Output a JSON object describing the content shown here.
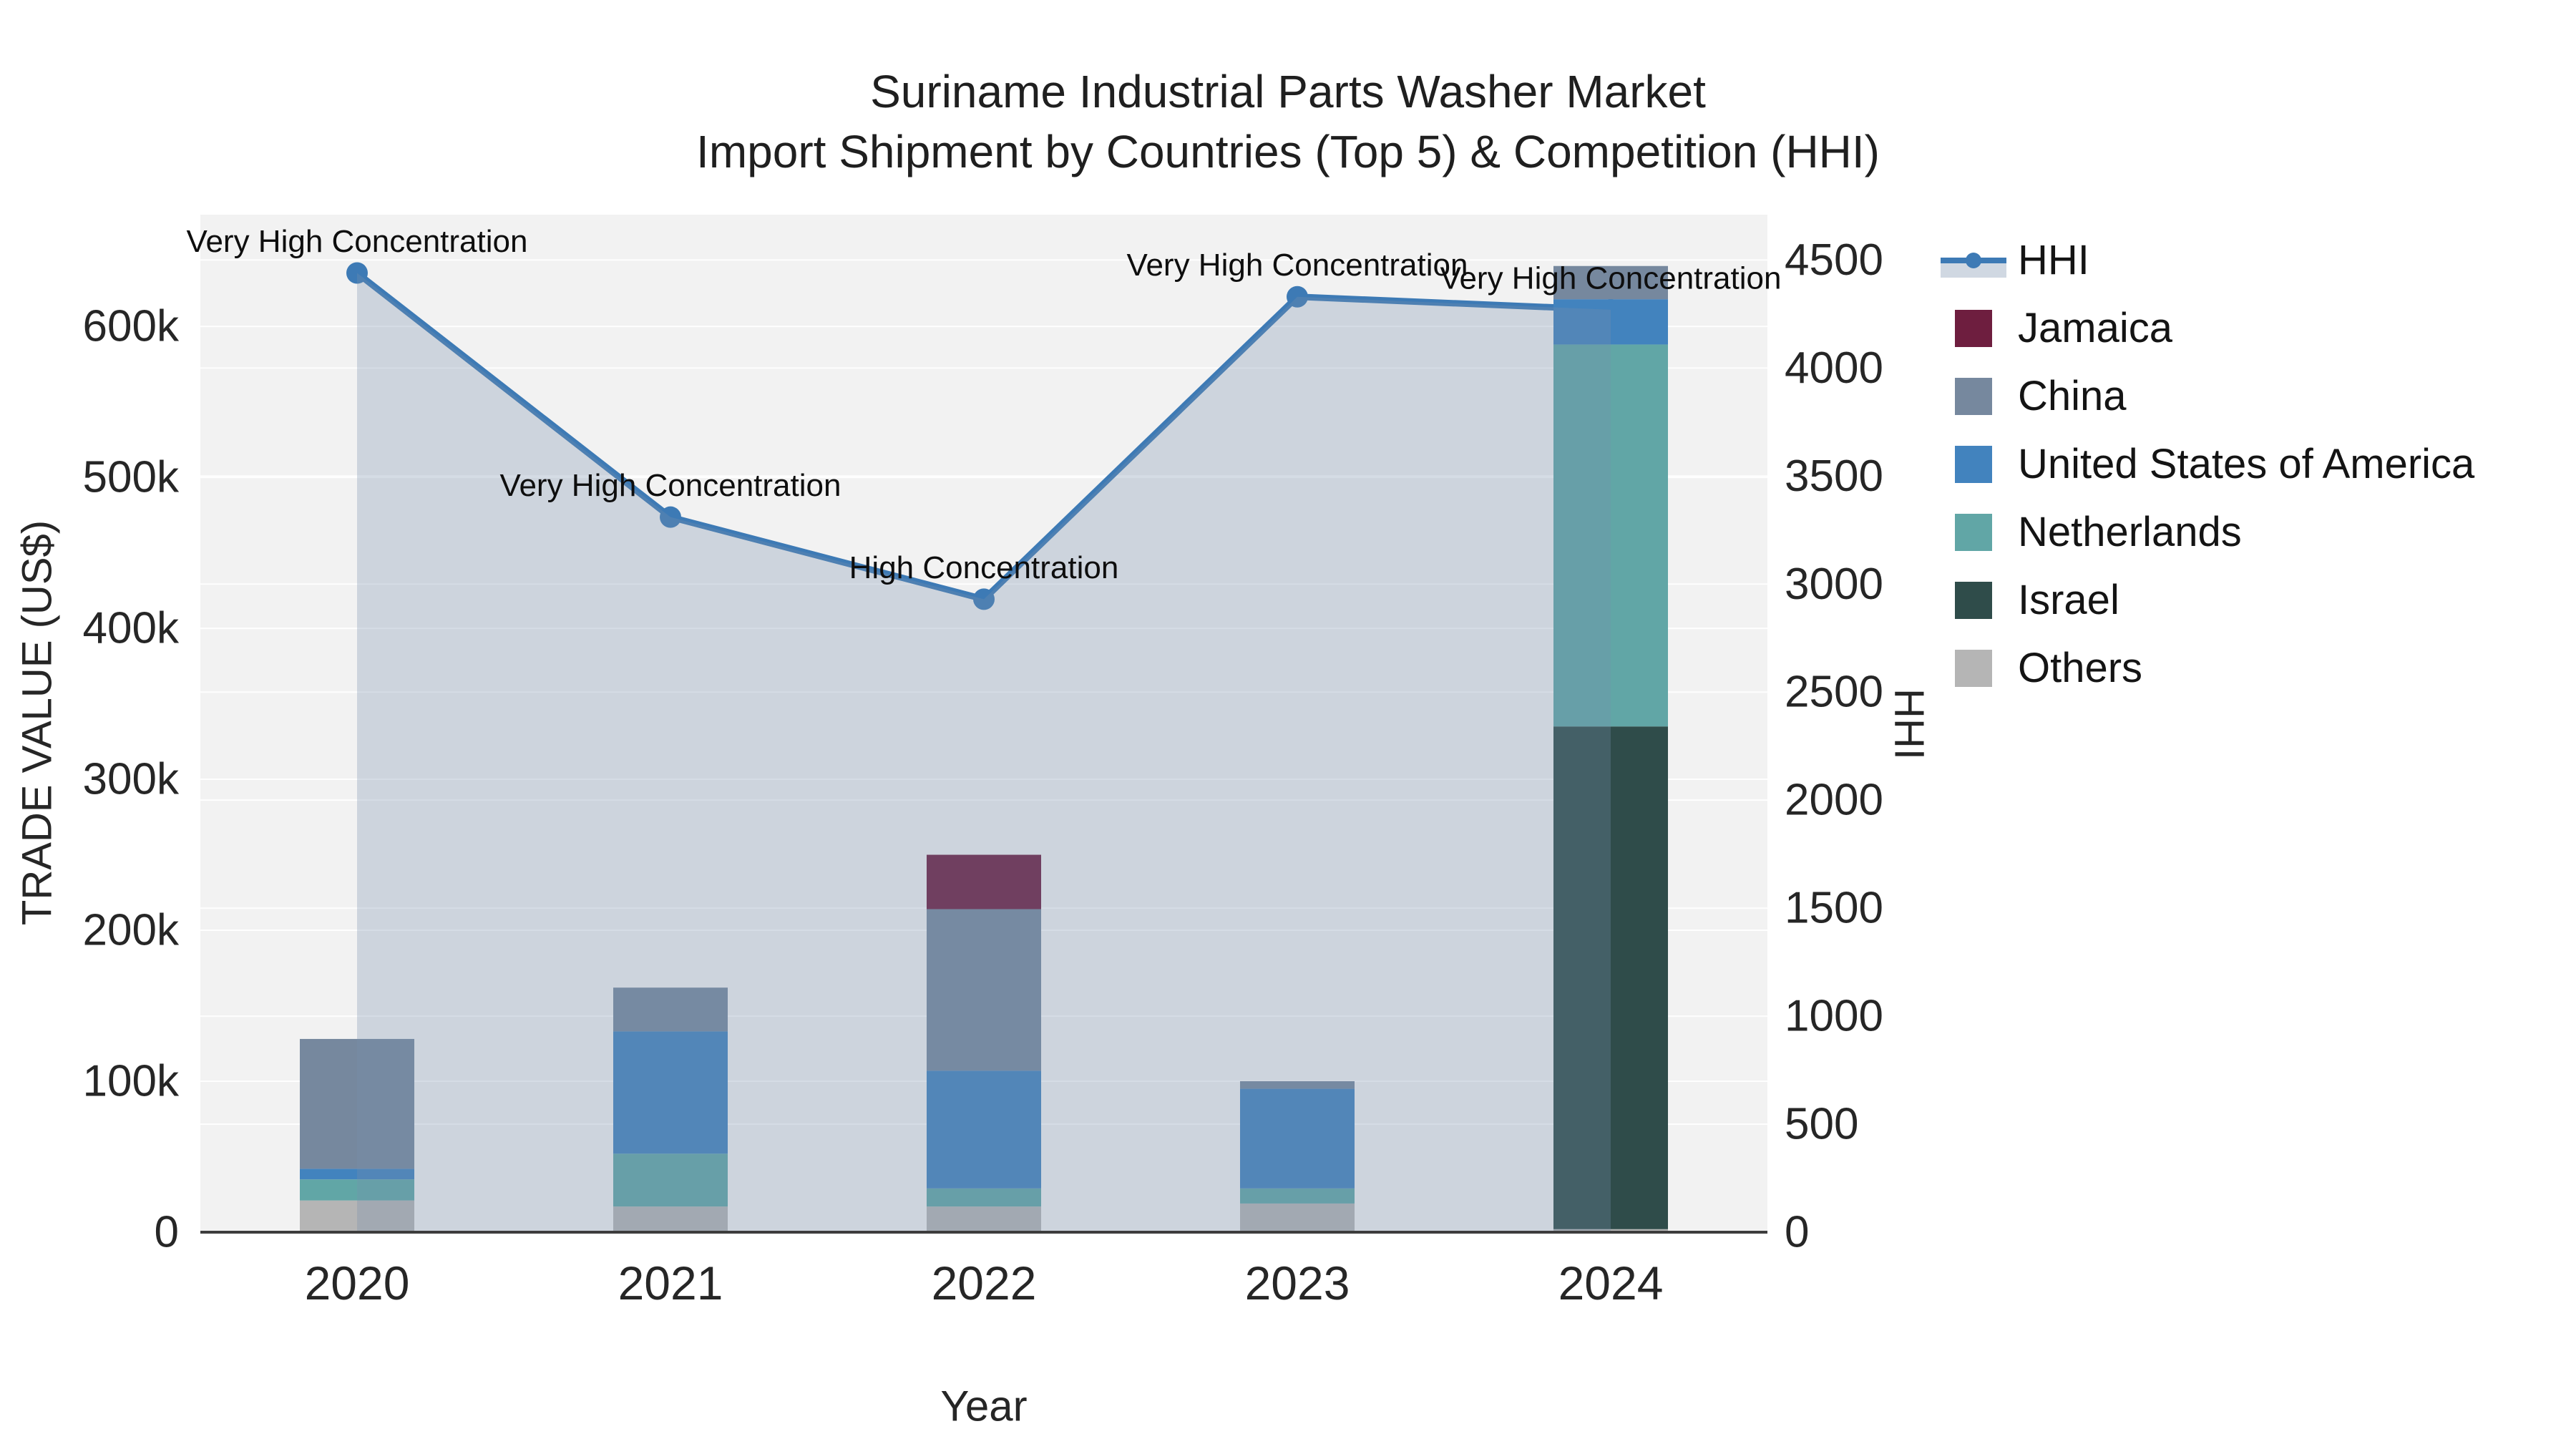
{
  "title": {
    "line1": "Suriname Industrial Parts Washer Market",
    "line2": "Import Shipment by Countries (Top 5) & Competition (HHI)"
  },
  "axes": {
    "left_title": "TRADE VALUE (US$)",
    "right_title": "HHI",
    "x_title": "Year"
  },
  "chart_data": {
    "type": "bar+line",
    "categories": [
      "2020",
      "2021",
      "2022",
      "2023",
      "2024"
    ],
    "series": [
      {
        "name": "Jamaica",
        "color": "#6E1E3F",
        "values": [
          0,
          0,
          36000,
          0,
          0
        ]
      },
      {
        "name": "China",
        "color": "#76889E",
        "values": [
          86000,
          29000,
          107000,
          5000,
          22000
        ]
      },
      {
        "name": "United States of America",
        "color": "#4283BE",
        "values": [
          7000,
          81000,
          78000,
          66000,
          30000
        ]
      },
      {
        "name": "Netherlands",
        "color": "#61A6A6",
        "values": [
          14000,
          35000,
          12000,
          10000,
          253000
        ]
      },
      {
        "name": "Israel",
        "color": "#2F4C4A",
        "values": [
          0,
          0,
          0,
          0,
          333000
        ]
      },
      {
        "name": "Others",
        "color": "#B5B5B5",
        "values": [
          21000,
          17000,
          17000,
          19000,
          2000
        ]
      }
    ],
    "stack_order": [
      "Others",
      "Israel",
      "Netherlands",
      "United States of America",
      "China",
      "Jamaica"
    ],
    "totals": [
      128000,
      162000,
      250000,
      100000,
      640000
    ],
    "hhi": {
      "name": "HHI",
      "values": [
        4440,
        3310,
        2930,
        4330,
        4270
      ],
      "line_color": "#3D7AB5",
      "fill_color": "#788FAB",
      "fill_opacity": 0.3
    },
    "annotations": [
      "Very High Concentration",
      "Very High Concentration",
      "High Concentration",
      "Very High Concentration",
      "Very High Concentration"
    ],
    "y_left": {
      "label": "TRADE VALUE (US$)",
      "range": [
        0,
        674000
      ],
      "tick_values": [
        0,
        100000,
        200000,
        300000,
        400000,
        500000,
        600000
      ],
      "tick_labels": [
        "0",
        "100k",
        "200k",
        "300k",
        "400k",
        "500k",
        "600k"
      ]
    },
    "y_right": {
      "label": "HHI",
      "range": [
        0,
        4710
      ],
      "tick_values": [
        0,
        500,
        1000,
        1500,
        2000,
        2500,
        3000,
        3500,
        4000,
        4500
      ],
      "tick_labels": [
        "0",
        "500",
        "1000",
        "1500",
        "2000",
        "2500",
        "3000",
        "3500",
        "4000",
        "4500"
      ]
    },
    "x_label": "Year",
    "legend_position": "right",
    "grid": true,
    "plot_bg": "#F2F2F2",
    "grid_color": "rgba(255,255,255,0.9)",
    "axis_line_color": "#3D3D3D",
    "text_color": "#262626",
    "annotation_color": "#0E0E0E"
  }
}
